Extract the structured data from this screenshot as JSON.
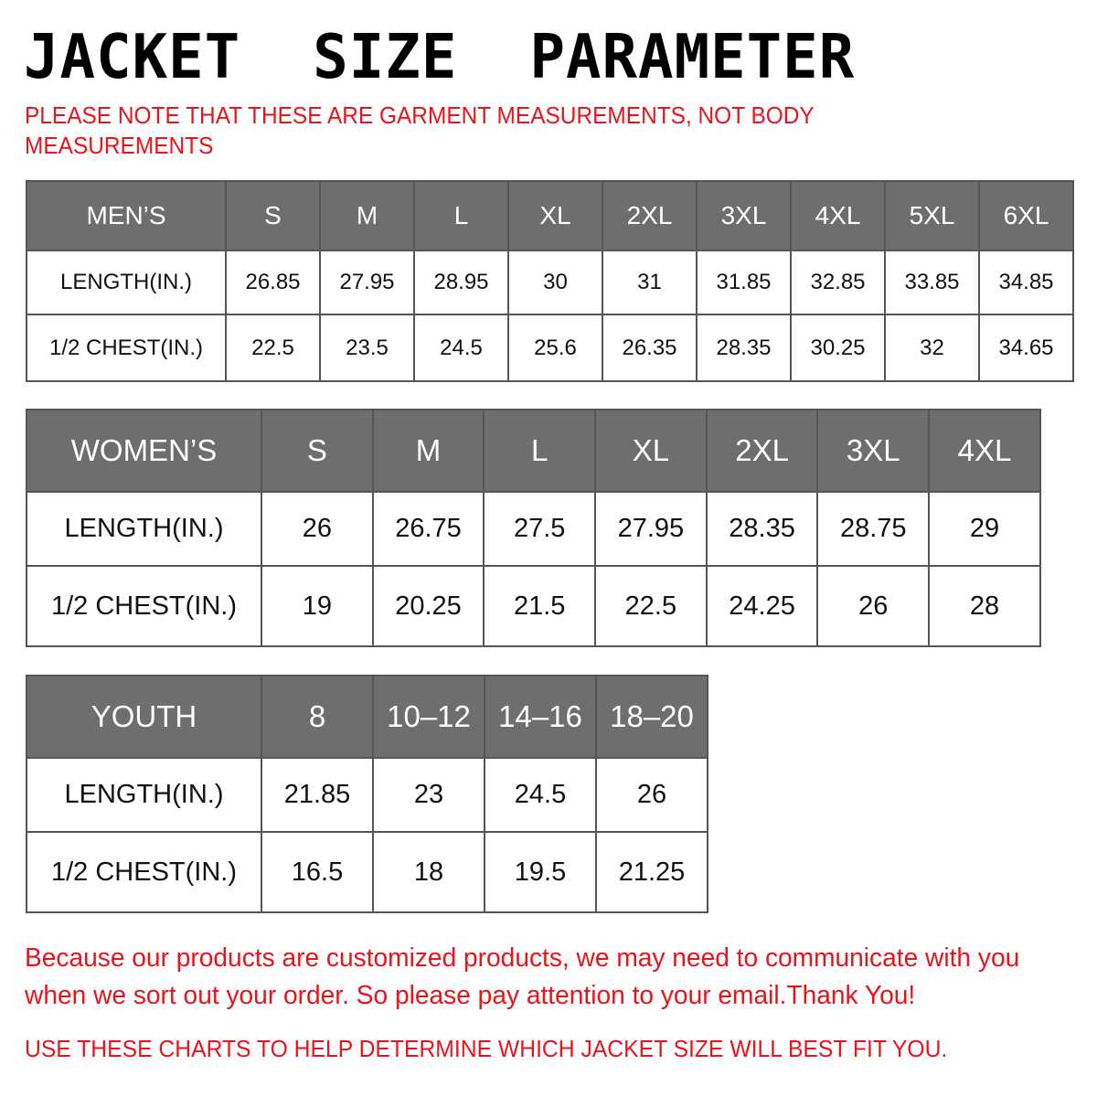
{
  "title": "JACKET  SIZE  PARAMETER",
  "note": "PLEASE NOTE THAT THESE ARE GARMENT MEASUREMENTS, NOT BODY MEASUREMENTS",
  "colors": {
    "header_bg": "#6e6e6e",
    "accent_red": "#e8141b"
  },
  "tables": {
    "men": {
      "label": "MEN’S",
      "sizes": [
        "S",
        "M",
        "L",
        "XL",
        "2XL",
        "3XL",
        "4XL",
        "5XL",
        "6XL"
      ],
      "rows": [
        {
          "label": "LENGTH(IN.)",
          "values": [
            "26.85",
            "27.95",
            "28.95",
            "30",
            "31",
            "31.85",
            "32.85",
            "33.85",
            "34.85"
          ]
        },
        {
          "label": "1/2 CHEST(IN.)",
          "values": [
            "22.5",
            "23.5",
            "24.5",
            "25.6",
            "26.35",
            "28.35",
            "30.25",
            "32",
            "34.65"
          ]
        }
      ]
    },
    "women": {
      "label": "WOMEN’S",
      "sizes": [
        "S",
        "M",
        "L",
        "XL",
        "2XL",
        "3XL",
        "4XL"
      ],
      "rows": [
        {
          "label": "LENGTH(IN.)",
          "values": [
            "26",
            "26.75",
            "27.5",
            "27.95",
            "28.35",
            "28.75",
            "29"
          ]
        },
        {
          "label": "1/2 CHEST(IN.)",
          "values": [
            "19",
            "20.25",
            "21.5",
            "22.5",
            "24.25",
            "26",
            "28"
          ]
        }
      ]
    },
    "youth": {
      "label": "YOUTH",
      "sizes": [
        "8",
        "10–12",
        "14–16",
        "18–20"
      ],
      "rows": [
        {
          "label": "LENGTH(IN.)",
          "values": [
            "21.85",
            "23",
            "24.5",
            "26"
          ]
        },
        {
          "label": "1/2 CHEST(IN.)",
          "values": [
            "16.5",
            "18",
            "19.5",
            "21.25"
          ]
        }
      ]
    }
  },
  "bottom_note": "Because our products are customized products, we may need to communicate with you when we sort out your order. So please pay attention to your email.Thank You!",
  "final_note": "USE THESE CHARTS TO HELP DETERMINE WHICH JACKET SIZE WILL BEST FIT YOU."
}
